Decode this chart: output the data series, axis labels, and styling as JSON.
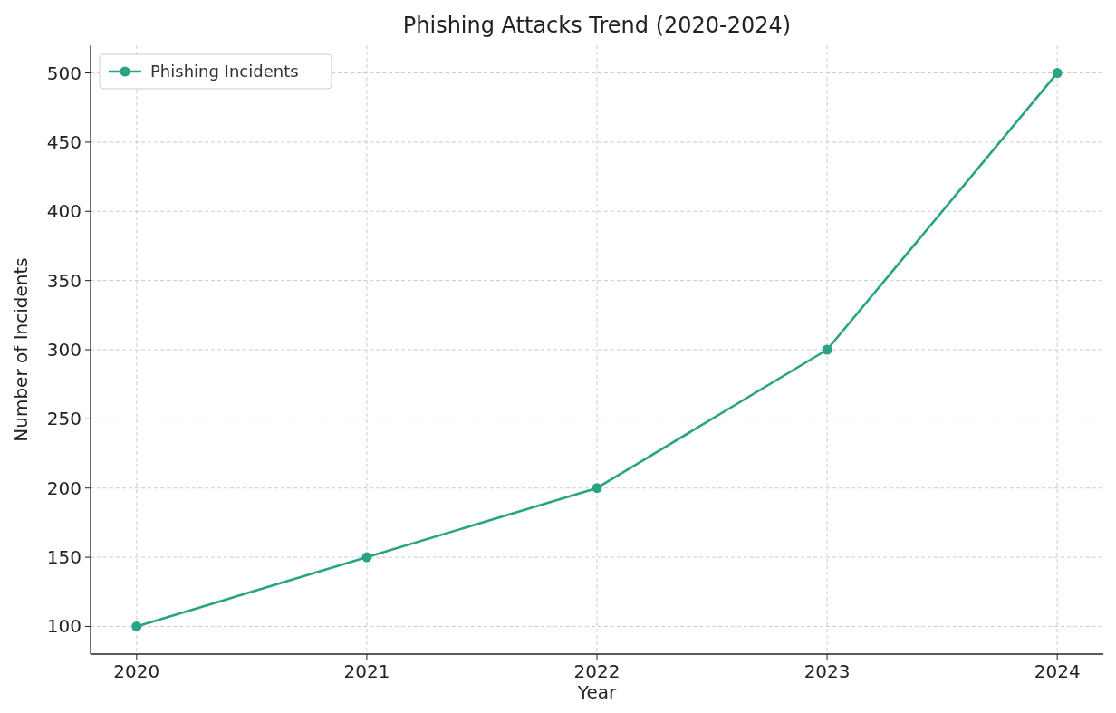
{
  "chart_data": {
    "type": "line",
    "title": "Phishing Attacks Trend (2020-2024)",
    "xlabel": "Year",
    "ylabel": "Number of Incidents",
    "x": [
      2020,
      2021,
      2022,
      2023,
      2024
    ],
    "series": [
      {
        "name": "Phishing Incidents",
        "color": "#29a383",
        "values": [
          100,
          150,
          200,
          300,
          500
        ]
      }
    ],
    "xlim": [
      2019.8,
      2024.2
    ],
    "xticks": [
      2020,
      2021,
      2022,
      2023,
      2024
    ],
    "ylim": [
      80,
      520
    ],
    "yticks": [
      100,
      150,
      200,
      250,
      300,
      350,
      400,
      450,
      500
    ],
    "grid": true,
    "legend": "top left",
    "marker": "circle",
    "line_style": "solid"
  }
}
